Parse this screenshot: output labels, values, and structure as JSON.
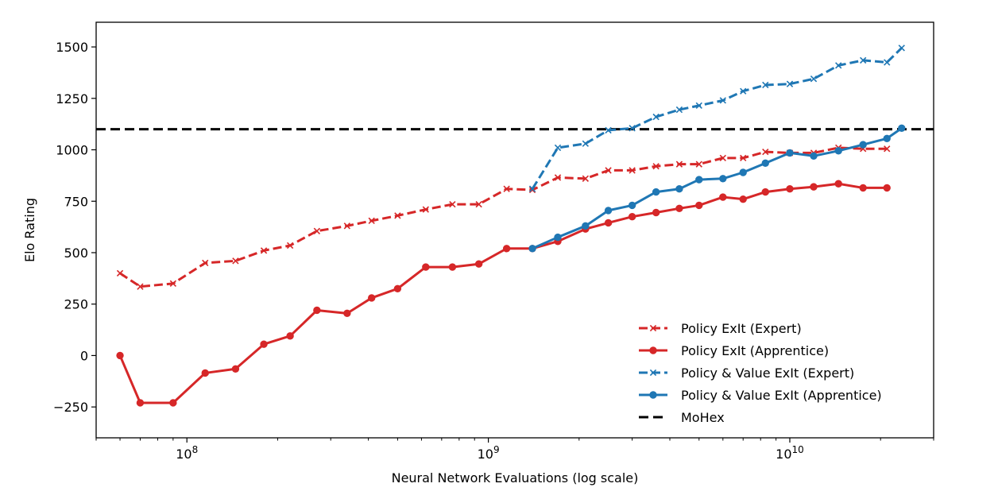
{
  "chart_data": {
    "type": "line",
    "title": "",
    "xlabel": "Neural Network Evaluations (log scale)",
    "ylabel": "Elo Rating",
    "xscale": "log",
    "xlim": [
      50000000,
      30000000000
    ],
    "ylim": [
      -400,
      1620
    ],
    "y_ticks": [
      -250,
      0,
      250,
      500,
      750,
      1000,
      1250,
      1500
    ],
    "y_tick_labels": [
      "−250",
      "0",
      "250",
      "500",
      "750",
      "1000",
      "1250",
      "1500"
    ],
    "x_ticks": [
      {
        "value": 100000000,
        "base": "10",
        "exp": "8"
      },
      {
        "value": 1000000000,
        "base": "10",
        "exp": "9"
      },
      {
        "value": 10000000000,
        "base": "10",
        "exp": "10"
      }
    ],
    "grid": false,
    "legend_position": "lower-right",
    "series": [
      {
        "name": "Policy ExIt (Expert)",
        "color": "#d62728",
        "dash": "dashed",
        "marker": "x",
        "x": [
          60000000,
          70000000,
          90000000,
          115000000,
          145000000,
          180000000,
          220000000,
          270000000,
          340000000,
          410000000,
          500000000,
          620000000,
          760000000,
          930000000,
          1150000000,
          1400000000,
          1700000000,
          2100000000,
          2500000000,
          3000000000,
          3600000000,
          4300000000,
          5000000000,
          6000000000,
          7000000000,
          8300000000,
          10000000000,
          12000000000,
          14500000000,
          17500000000,
          21000000000
        ],
        "y": [
          400,
          335,
          350,
          450,
          460,
          510,
          535,
          605,
          630,
          655,
          680,
          710,
          735,
          735,
          810,
          805,
          865,
          860,
          900,
          900,
          920,
          930,
          930,
          960,
          960,
          990,
          985,
          985,
          1010,
          1005,
          1005
        ]
      },
      {
        "name": "Policy ExIt (Apprentice)",
        "color": "#d62728",
        "dash": "solid",
        "marker": "o",
        "x": [
          60000000,
          70000000,
          90000000,
          115000000,
          145000000,
          180000000,
          220000000,
          270000000,
          340000000,
          410000000,
          500000000,
          620000000,
          760000000,
          930000000,
          1150000000,
          1400000000,
          1700000000,
          2100000000,
          2500000000,
          3000000000,
          3600000000,
          4300000000,
          5000000000,
          6000000000,
          7000000000,
          8300000000,
          10000000000,
          12000000000,
          14500000000,
          17500000000,
          21000000000
        ],
        "y": [
          0,
          -230,
          -230,
          -85,
          -65,
          55,
          95,
          220,
          205,
          280,
          325,
          430,
          430,
          445,
          520,
          520,
          555,
          615,
          645,
          675,
          695,
          715,
          730,
          770,
          760,
          795,
          810,
          820,
          835,
          815,
          815
        ]
      },
      {
        "name": "Policy & Value ExIt (Expert)",
        "color": "#1f77b4",
        "dash": "dashed",
        "marker": "x",
        "x": [
          1400000000,
          1700000000,
          2100000000,
          2500000000,
          3000000000,
          3600000000,
          4300000000,
          5000000000,
          6000000000,
          7000000000,
          8300000000,
          10000000000,
          12000000000,
          14500000000,
          17500000000,
          21000000000,
          23500000000
        ],
        "y": [
          810,
          1010,
          1030,
          1095,
          1105,
          1160,
          1195,
          1215,
          1240,
          1285,
          1315,
          1320,
          1345,
          1410,
          1435,
          1425,
          1495
        ]
      },
      {
        "name": "Policy & Value ExIt (Apprentice)",
        "color": "#1f77b4",
        "dash": "solid",
        "marker": "o",
        "x": [
          1400000000,
          1700000000,
          2100000000,
          2500000000,
          3000000000,
          3600000000,
          4300000000,
          5000000000,
          6000000000,
          7000000000,
          8300000000,
          10000000000,
          12000000000,
          14500000000,
          17500000000,
          21000000000,
          23500000000
        ],
        "y": [
          520,
          575,
          630,
          705,
          730,
          795,
          810,
          855,
          860,
          890,
          935,
          985,
          970,
          995,
          1025,
          1055,
          1105
        ]
      }
    ],
    "reference_lines": [
      {
        "name": "MoHex",
        "y": 1100,
        "color": "#000000",
        "dash": "dashed"
      }
    ]
  }
}
